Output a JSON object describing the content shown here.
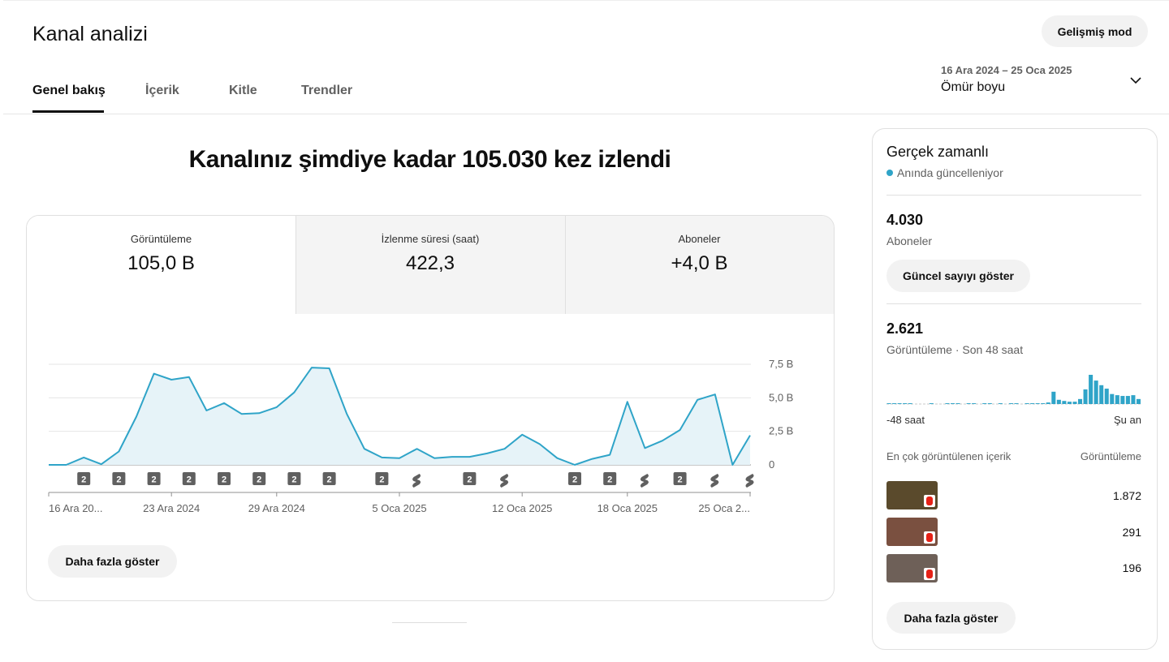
{
  "header": {
    "title": "Kanal analizi",
    "advanced_button": "Gelişmiş mod",
    "date_range": "16 Ara 2024 – 25 Oca 2025",
    "period": "Ömür boyu"
  },
  "tabs": [
    "Genel bakış",
    "İçerik",
    "Kitle",
    "Trendler"
  ],
  "headline": "Kanalınız şimdiye kadar 105.030 kez izlendi",
  "metrics": [
    {
      "label": "Görüntüleme",
      "value": "105,0 B"
    },
    {
      "label": "İzlenme süresi (saat)",
      "value": "422,3"
    },
    {
      "label": "Aboneler",
      "value": "+4,0 B"
    }
  ],
  "chart_data": [
    {
      "type": "line",
      "color": "#2fa4c8",
      "fill": "#e6f3f8",
      "categories": [
        "16 Ara 20...",
        null,
        null,
        null,
        null,
        null,
        null,
        "23 Ara 2024",
        null,
        null,
        null,
        null,
        null,
        "29 Ara 2024",
        null,
        null,
        null,
        null,
        null,
        null,
        "5 Oca 2025",
        null,
        null,
        null,
        null,
        null,
        null,
        "12 Oca 2025",
        null,
        null,
        null,
        null,
        null,
        "18 Oca 2025",
        null,
        null,
        null,
        null,
        null,
        null,
        "25 Oca 2..."
      ],
      "values": [
        0,
        0,
        0.55,
        0.05,
        1.0,
        3.6,
        6.8,
        6.35,
        6.55,
        4.05,
        4.6,
        3.8,
        3.85,
        4.3,
        5.4,
        7.25,
        7.2,
        3.8,
        1.2,
        0.55,
        0.5,
        1.2,
        0.5,
        0.6,
        0.6,
        0.85,
        1.2,
        2.25,
        1.55,
        0.5,
        0,
        0.45,
        0.75,
        4.7,
        1.25,
        1.8,
        2.6,
        4.85,
        5.25,
        0,
        2.2
      ],
      "uploads": [
        null,
        null,
        "2",
        null,
        "2",
        null,
        "2",
        null,
        "2",
        null,
        "2",
        null,
        "2",
        null,
        "2",
        null,
        "2",
        null,
        null,
        "2",
        null,
        null,
        null,
        null,
        "2",
        null,
        null,
        null,
        null,
        null,
        "2",
        null,
        "2",
        null,
        null,
        null,
        "2",
        null,
        null,
        null,
        null
      ],
      "ylim": [
        0,
        7.5
      ],
      "yticks": [
        0,
        {
          "value": 2.5,
          "label": "2,5 B"
        },
        {
          "value": 5.0,
          "label": "5,0 B"
        },
        {
          "value": 7.5,
          "label": "7,5 B"
        }
      ],
      "grid": true
    },
    {
      "type": "bar",
      "color": "#2fa4c8",
      "categories": [
        "-48 saat",
        null,
        null,
        null,
        null,
        null,
        null,
        null,
        null,
        null,
        null,
        null,
        null,
        null,
        null,
        null,
        null,
        null,
        null,
        null,
        null,
        null,
        null,
        null,
        null,
        null,
        null,
        null,
        null,
        null,
        null,
        null,
        null,
        null,
        null,
        null,
        null,
        null,
        null,
        null,
        null,
        null,
        null,
        null,
        null,
        null,
        null,
        "Şu an"
      ],
      "values": [
        10,
        10,
        10,
        10,
        10,
        0,
        0,
        0,
        10,
        0,
        0,
        10,
        10,
        10,
        0,
        10,
        10,
        0,
        10,
        10,
        0,
        10,
        0,
        10,
        10,
        0,
        10,
        10,
        10,
        10,
        20,
        160,
        55,
        40,
        30,
        30,
        65,
        190,
        380,
        305,
        245,
        200,
        130,
        115,
        105,
        105,
        115,
        65
      ]
    }
  ],
  "show_more": "Daha fazla göster",
  "realtime": {
    "title": "Gerçek zamanlı",
    "status": "Anında güncelleniyor",
    "subscribers": {
      "value": "4.030",
      "label": "Aboneler",
      "button": "Güncel sayıyı göster"
    },
    "views": {
      "value": "2.621",
      "label": "Görüntüleme · Son 48 saat"
    },
    "top_content": {
      "header": "En çok görüntülenen içerik",
      "metric": "Görüntüleme",
      "rows": [
        "1.872",
        "291",
        "196"
      ]
    },
    "show_more": "Daha fazla göster"
  }
}
